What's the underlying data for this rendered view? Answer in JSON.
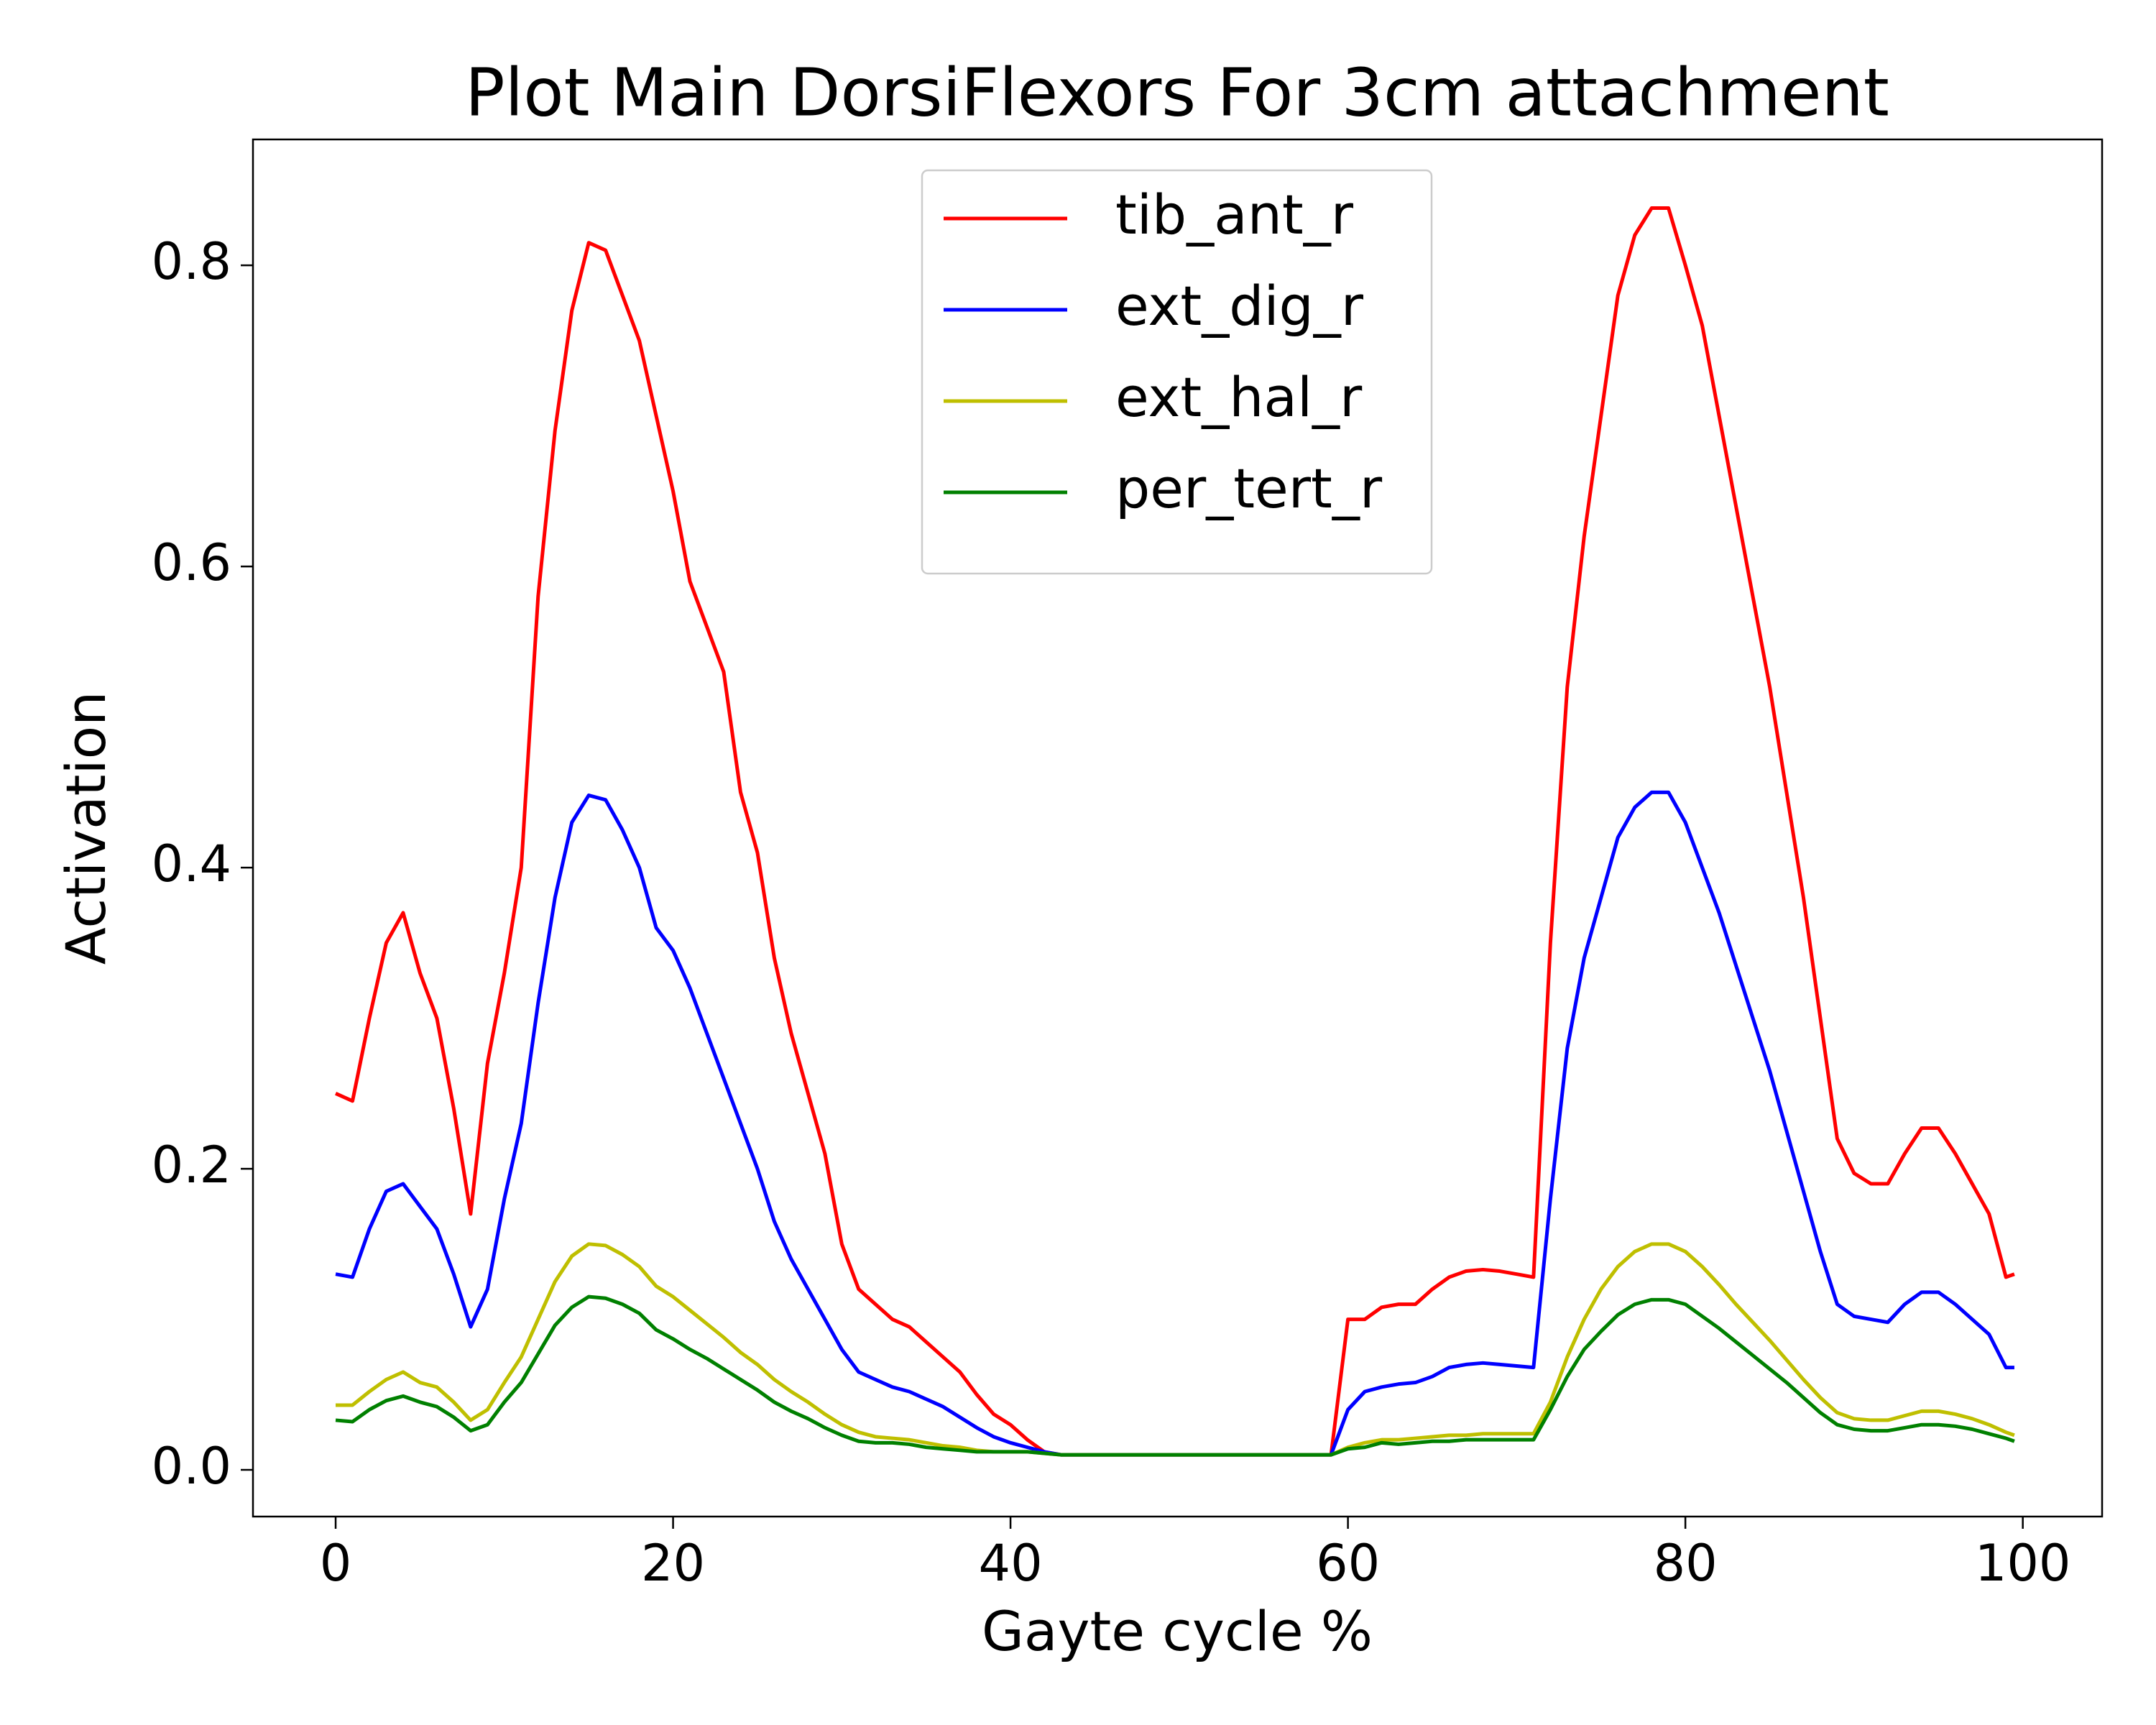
{
  "chart_data": {
    "type": "line",
    "title": "Plot Main DorsiFlexors For 3cm attachment",
    "x_label": "Gayte cycle %",
    "y_label": "Activation",
    "xlim": [
      -4.9,
      104.7
    ],
    "ylim": [
      -0.031,
      0.8836
    ],
    "xticks": [
      0,
      20,
      40,
      60,
      80,
      100
    ],
    "yticks": [
      {
        "value": 0,
        "label": "0.0"
      },
      0.2,
      0.4,
      0.6,
      0.8
    ],
    "grid": false,
    "legend": "upper center",
    "x": [
      0,
      1,
      2,
      3,
      4,
      5,
      6,
      7,
      8,
      9,
      10,
      11,
      12,
      13,
      14,
      15,
      16,
      17,
      18,
      19,
      20,
      21,
      22,
      23,
      24,
      25,
      26,
      27,
      28,
      29,
      30,
      31,
      32,
      33,
      34,
      35,
      36,
      37,
      38,
      39,
      40,
      41,
      42,
      43,
      44,
      45,
      46,
      47,
      48,
      49,
      50,
      51,
      52,
      53,
      54,
      55,
      56,
      57,
      58,
      59,
      60,
      61,
      62,
      63,
      64,
      65,
      66,
      67,
      68,
      69,
      70,
      71,
      72,
      73,
      74,
      75,
      76,
      77,
      78,
      79,
      80,
      81,
      82,
      83,
      84,
      85,
      86,
      87,
      88,
      89,
      90,
      91,
      92,
      93,
      94,
      95,
      96,
      97,
      98,
      99,
      99.5
    ],
    "series": [
      {
        "name": "tib_ant_r",
        "color": "#ff0000",
        "values": [
          0.25,
          0.245,
          0.3,
          0.35,
          0.37,
          0.33,
          0.3,
          0.24,
          0.17,
          0.27,
          0.33,
          0.4,
          0.58,
          0.69,
          0.77,
          0.815,
          0.81,
          0.78,
          0.75,
          0.7,
          0.65,
          0.59,
          0.56,
          0.53,
          0.45,
          0.41,
          0.34,
          0.29,
          0.25,
          0.21,
          0.15,
          0.12,
          0.11,
          0.1,
          0.095,
          0.085,
          0.075,
          0.065,
          0.05,
          0.037,
          0.03,
          0.02,
          0.012,
          0.01,
          0.01,
          0.01,
          0.01,
          0.01,
          0.01,
          0.01,
          0.01,
          0.01,
          0.01,
          0.01,
          0.01,
          0.01,
          0.01,
          0.01,
          0.01,
          0.01,
          0.1,
          0.1,
          0.108,
          0.11,
          0.11,
          0.12,
          0.128,
          0.132,
          0.133,
          0.132,
          0.13,
          0.128,
          0.35,
          0.52,
          0.62,
          0.7,
          0.78,
          0.82,
          0.838,
          0.838,
          0.8,
          0.76,
          0.7,
          0.64,
          0.58,
          0.52,
          0.45,
          0.38,
          0.3,
          0.22,
          0.197,
          0.19,
          0.19,
          0.21,
          0.227,
          0.227,
          0.21,
          0.19,
          0.17,
          0.128,
          0.13
        ]
      },
      {
        "name": "ext_dig_r",
        "color": "#0000ff",
        "values": [
          0.13,
          0.128,
          0.16,
          0.185,
          0.19,
          0.175,
          0.16,
          0.13,
          0.095,
          0.12,
          0.18,
          0.23,
          0.31,
          0.38,
          0.43,
          0.448,
          0.445,
          0.425,
          0.4,
          0.36,
          0.345,
          0.32,
          0.29,
          0.26,
          0.23,
          0.2,
          0.165,
          0.14,
          0.12,
          0.1,
          0.08,
          0.065,
          0.06,
          0.055,
          0.052,
          0.047,
          0.042,
          0.035,
          0.028,
          0.022,
          0.018,
          0.015,
          0.012,
          0.01,
          0.01,
          0.01,
          0.01,
          0.01,
          0.01,
          0.01,
          0.01,
          0.01,
          0.01,
          0.01,
          0.01,
          0.01,
          0.01,
          0.01,
          0.01,
          0.01,
          0.04,
          0.052,
          0.055,
          0.057,
          0.058,
          0.062,
          0.068,
          0.07,
          0.071,
          0.07,
          0.069,
          0.068,
          0.18,
          0.28,
          0.34,
          0.38,
          0.42,
          0.44,
          0.45,
          0.45,
          0.43,
          0.4,
          0.37,
          0.335,
          0.3,
          0.265,
          0.225,
          0.185,
          0.145,
          0.11,
          0.102,
          0.1,
          0.098,
          0.11,
          0.118,
          0.118,
          0.11,
          0.1,
          0.09,
          0.068,
          0.068
        ]
      },
      {
        "name": "ext_hal_r",
        "color": "#bfbf00",
        "values": [
          0.043,
          0.043,
          0.052,
          0.06,
          0.065,
          0.058,
          0.055,
          0.045,
          0.033,
          0.04,
          0.058,
          0.075,
          0.1,
          0.125,
          0.142,
          0.15,
          0.149,
          0.143,
          0.135,
          0.122,
          0.115,
          0.106,
          0.097,
          0.088,
          0.078,
          0.07,
          0.06,
          0.052,
          0.045,
          0.037,
          0.03,
          0.025,
          0.022,
          0.021,
          0.02,
          0.018,
          0.016,
          0.015,
          0.013,
          0.012,
          0.012,
          0.012,
          0.011,
          0.01,
          0.01,
          0.01,
          0.01,
          0.01,
          0.01,
          0.01,
          0.01,
          0.01,
          0.01,
          0.01,
          0.01,
          0.01,
          0.01,
          0.01,
          0.01,
          0.01,
          0.015,
          0.018,
          0.02,
          0.02,
          0.021,
          0.022,
          0.023,
          0.023,
          0.024,
          0.024,
          0.024,
          0.024,
          0.045,
          0.075,
          0.1,
          0.12,
          0.135,
          0.145,
          0.15,
          0.15,
          0.145,
          0.135,
          0.123,
          0.11,
          0.098,
          0.086,
          0.073,
          0.06,
          0.048,
          0.038,
          0.034,
          0.033,
          0.033,
          0.036,
          0.039,
          0.039,
          0.037,
          0.034,
          0.03,
          0.025,
          0.023
        ]
      },
      {
        "name": "per_tert_r",
        "color": "#008000",
        "values": [
          0.033,
          0.032,
          0.04,
          0.046,
          0.049,
          0.045,
          0.042,
          0.035,
          0.026,
          0.03,
          0.045,
          0.058,
          0.077,
          0.096,
          0.108,
          0.115,
          0.114,
          0.11,
          0.104,
          0.093,
          0.087,
          0.08,
          0.074,
          0.067,
          0.06,
          0.053,
          0.045,
          0.039,
          0.034,
          0.028,
          0.023,
          0.019,
          0.018,
          0.018,
          0.017,
          0.015,
          0.014,
          0.013,
          0.012,
          0.012,
          0.012,
          0.012,
          0.011,
          0.01,
          0.01,
          0.01,
          0.01,
          0.01,
          0.01,
          0.01,
          0.01,
          0.01,
          0.01,
          0.01,
          0.01,
          0.01,
          0.01,
          0.01,
          0.01,
          0.01,
          0.014,
          0.015,
          0.018,
          0.017,
          0.018,
          0.019,
          0.019,
          0.02,
          0.02,
          0.02,
          0.02,
          0.02,
          0.04,
          0.062,
          0.08,
          0.092,
          0.103,
          0.11,
          0.113,
          0.113,
          0.11,
          0.102,
          0.094,
          0.085,
          0.076,
          0.067,
          0.058,
          0.048,
          0.038,
          0.03,
          0.027,
          0.026,
          0.026,
          0.028,
          0.03,
          0.03,
          0.029,
          0.027,
          0.024,
          0.021,
          0.019
        ]
      }
    ]
  }
}
